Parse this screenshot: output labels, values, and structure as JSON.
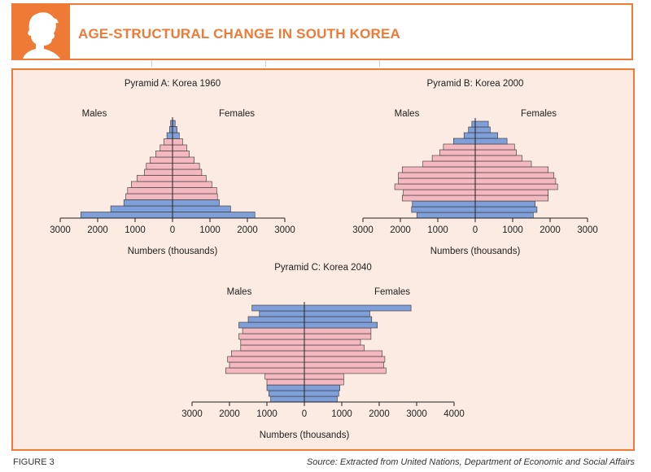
{
  "header": {
    "title": "AGE-STRUCTURAL CHANGE IN SOUTH KOREA",
    "icon": "person-silhouette-icon"
  },
  "footer": {
    "figure_label": "FIGURE 3",
    "source": "Source: Extracted from United Nations, Department of Economic and Social Affairs"
  },
  "colors": {
    "accent": "#ee7a35",
    "pink": "#f4b8c0",
    "blue": "#7f9fd8",
    "panel_bg": "#fcebe2"
  },
  "chart_data": [
    {
      "type": "bar",
      "orientation": "population-pyramid",
      "title": "Pyramid A: Korea 1960",
      "left_label": "Males",
      "right_label": "Females",
      "xlabel": "Numbers (thousands)",
      "xlim": [
        -3000,
        3000
      ],
      "ticks": [
        -3000,
        -2000,
        -1000,
        0,
        1000,
        2000,
        3000
      ],
      "tick_labels": [
        "3000",
        "2000",
        "1000",
        "0",
        "1000",
        "2000",
        "3000"
      ],
      "males": [
        2450,
        1650,
        1300,
        1250,
        1200,
        1100,
        950,
        750,
        700,
        600,
        450,
        330,
        230,
        150,
        80,
        50
      ],
      "females": [
        2200,
        1550,
        1250,
        1200,
        1180,
        1050,
        900,
        780,
        720,
        580,
        450,
        380,
        270,
        180,
        120,
        70
      ],
      "highlight": [
        "blue",
        "blue",
        "blue",
        "pink",
        "pink",
        "pink",
        "pink",
        "pink",
        "pink",
        "pink",
        "pink",
        "pink",
        "pink",
        "blue",
        "blue",
        "blue"
      ]
    },
    {
      "type": "bar",
      "orientation": "population-pyramid",
      "title": "Pyramid B: Korea 2000",
      "left_label": "Males",
      "right_label": "Females",
      "xlabel": "Numbers (thousands)",
      "xlim": [
        -3000,
        3000
      ],
      "ticks": [
        -3000,
        -2000,
        -1000,
        0,
        1000,
        2000,
        3000
      ],
      "tick_labels": [
        "3000",
        "2000",
        "1000",
        "0",
        "1000",
        "2000",
        "3000"
      ],
      "males": [
        1560,
        1700,
        1680,
        1950,
        1920,
        2150,
        2050,
        2050,
        1950,
        1400,
        1150,
        950,
        850,
        580,
        300,
        180,
        90
      ],
      "females": [
        1550,
        1650,
        1600,
        1950,
        1950,
        2200,
        2150,
        2100,
        1950,
        1500,
        1250,
        1100,
        1050,
        850,
        600,
        400,
        350
      ],
      "highlight": [
        "blue",
        "blue",
        "blue",
        "pink",
        "pink",
        "pink",
        "pink",
        "pink",
        "pink",
        "pink",
        "pink",
        "pink",
        "pink",
        "blue",
        "blue",
        "blue",
        "blue"
      ]
    },
    {
      "type": "bar",
      "orientation": "population-pyramid",
      "title": "Pyramid C: Korea 2040",
      "left_label": "Males",
      "right_label": "Females",
      "xlabel": "Numbers (thousands)",
      "xlim": [
        -3000,
        4000
      ],
      "ticks": [
        -3000,
        -2000,
        -1000,
        0,
        1000,
        2000,
        3000,
        4000
      ],
      "tick_labels": [
        "3000",
        "2000",
        "1000",
        "0",
        "1000",
        "2000",
        "3000",
        "4000"
      ],
      "males": [
        900,
        950,
        1000,
        1000,
        1050,
        2100,
        2000,
        2050,
        1950,
        1700,
        1700,
        1750,
        1650,
        1750,
        1500,
        1200,
        1400
      ],
      "females": [
        880,
        920,
        950,
        1050,
        1050,
        2180,
        2120,
        2150,
        2080,
        1600,
        1500,
        1780,
        1780,
        1950,
        1800,
        1750,
        2850
      ],
      "highlight": [
        "blue",
        "blue",
        "blue",
        "pink",
        "pink",
        "pink",
        "pink",
        "pink",
        "pink",
        "pink",
        "pink",
        "pink",
        "pink",
        "blue",
        "blue",
        "blue",
        "blue"
      ]
    }
  ]
}
